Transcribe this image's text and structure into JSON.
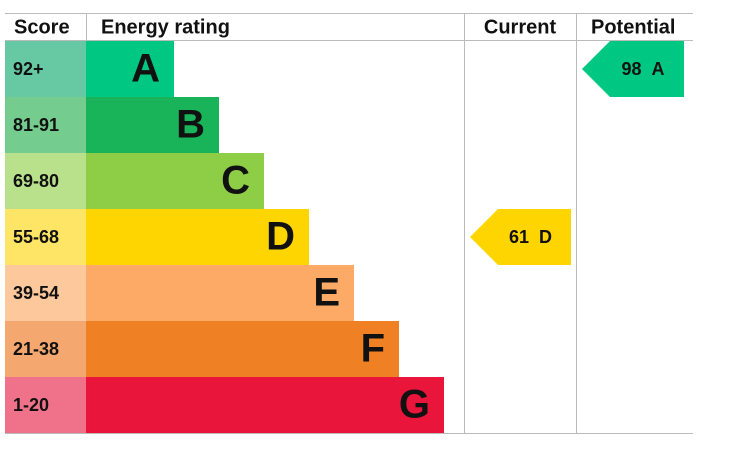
{
  "header": {
    "score": "Score",
    "rating": "Energy rating",
    "current": "Current",
    "potential": "Potential"
  },
  "bands": [
    {
      "score": "92+",
      "letter": "A",
      "color": "#00c781",
      "score_color": "#66c9a3"
    },
    {
      "score": "81-91",
      "letter": "B",
      "color": "#19b459",
      "score_color": "#74cc8f"
    },
    {
      "score": "69-80",
      "letter": "C",
      "color": "#8dce46",
      "score_color": "#b9e08b"
    },
    {
      "score": "55-68",
      "letter": "D",
      "color": "#ffd500",
      "score_color": "#ffe566"
    },
    {
      "score": "39-54",
      "letter": "E",
      "color": "#fcaa65",
      "score_color": "#fdc99c"
    },
    {
      "score": "21-38",
      "letter": "F",
      "color": "#ef8023",
      "score_color": "#f4a870"
    },
    {
      "score": "1-20",
      "letter": "G",
      "color": "#e9153b",
      "score_color": "#f0728a"
    }
  ],
  "current": {
    "score": 61,
    "band": "D"
  },
  "potential": {
    "score": 98,
    "band": "A"
  }
}
